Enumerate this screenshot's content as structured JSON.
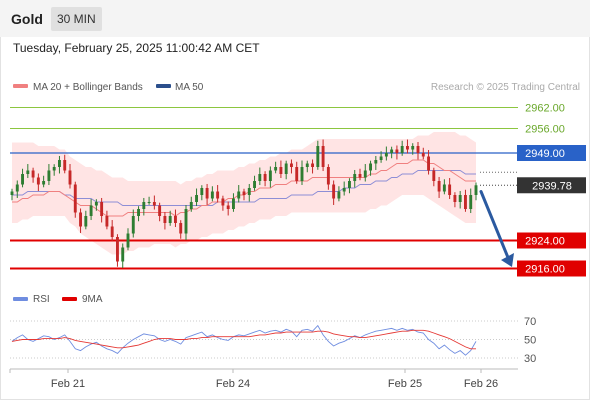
{
  "header": {
    "title": "Gold",
    "interval": "30 MIN"
  },
  "timestamp": "Tuesday, February 25, 2025 11:00:42 AM CET",
  "legend": {
    "ma20_label": "MA 20 + Bollinger Bands",
    "ma50_label": "MA 50",
    "credit": "Research © 2025 Trading Central",
    "rsi_label": "RSI",
    "rsi_ma_label": "9MA"
  },
  "colors": {
    "bullish": "#2e7d32",
    "bearish": "#c62828",
    "band": "#ffd6d6",
    "ma20": "#f08080",
    "ma50": "#8e8ed6",
    "resistance": "#8cc63f",
    "pivot": "#2962c8",
    "support": "#e00000",
    "last": "#333333",
    "rsi": "#6f8de0",
    "rsi_ma": "#e53935",
    "arrow": "#2b5aa0"
  },
  "chart_data": {
    "type": "candlestick",
    "ylim": [
      2911,
      2965
    ],
    "x_labels": [
      "Feb 21",
      "Feb 24",
      "Feb 25",
      "Feb 26"
    ],
    "levels": [
      {
        "label": "2962.00",
        "value": 2962.0,
        "kind": "resistance"
      },
      {
        "label": "2956.00",
        "value": 2956.0,
        "kind": "resistance"
      },
      {
        "label": "2949.00",
        "value": 2949.0,
        "kind": "pivot"
      },
      {
        "label": "2939.78",
        "value": 2939.78,
        "kind": "last"
      },
      {
        "label": "2924.00",
        "value": 2924.0,
        "kind": "support"
      },
      {
        "label": "2916.00",
        "value": 2916.0,
        "kind": "support"
      }
    ],
    "close": [
      2938,
      2940,
      2943,
      2944,
      2942,
      2940,
      2941,
      2944,
      2945,
      2947,
      2944,
      2940,
      2932,
      2928,
      2931,
      2934,
      2935,
      2931,
      2928,
      2925,
      2918,
      2922,
      2926,
      2931,
      2933,
      2935,
      2935,
      2934,
      2931,
      2929,
      2931,
      2929,
      2926,
      2933,
      2935,
      2937,
      2939,
      2936,
      2938,
      2936,
      2934,
      2933,
      2936,
      2938,
      2937,
      2939,
      2941,
      2943,
      2941,
      2944,
      2945,
      2943,
      2946,
      2945,
      2941,
      2945,
      2946,
      2945,
      2951,
      2945,
      2940,
      2936,
      2938,
      2939,
      2941,
      2943,
      2942,
      2944,
      2946,
      2947,
      2948,
      2949,
      2950,
      2949,
      2951,
      2950,
      2951,
      2949,
      2948,
      2944,
      2941,
      2938,
      2940,
      2937,
      2935,
      2937,
      2933,
      2937,
      2939.78
    ],
    "ma20": [
      2935,
      2935,
      2936,
      2936,
      2937,
      2937,
      2937,
      2938,
      2938,
      2938,
      2937,
      2936,
      2935,
      2934,
      2934,
      2934,
      2933,
      2932,
      2931,
      2931,
      2931,
      2931,
      2932,
      2932,
      2932,
      2932,
      2932,
      2932,
      2932,
      2932,
      2932,
      2931,
      2932,
      2932,
      2933,
      2933,
      2934,
      2934,
      2935,
      2935,
      2935,
      2936,
      2936,
      2937,
      2937,
      2938,
      2938,
      2939,
      2939,
      2939,
      2940,
      2940,
      2940,
      2941,
      2941,
      2941,
      2941,
      2942,
      2942,
      2942,
      2942,
      2942,
      2942,
      2942,
      2942,
      2942,
      2942,
      2942,
      2943,
      2943,
      2944,
      2944,
      2945,
      2946,
      2946,
      2946,
      2947,
      2947,
      2947,
      2946,
      2946,
      2945,
      2944,
      2944,
      2943,
      2942,
      2941,
      2941,
      2941
    ],
    "ma50": [
      2937,
      2937,
      2937,
      2938,
      2938,
      2938,
      2938,
      2938,
      2938,
      2938,
      2937,
      2937,
      2936,
      2936,
      2936,
      2936,
      2935,
      2935,
      2935,
      2935,
      2935,
      2934,
      2934,
      2934,
      2934,
      2934,
      2934,
      2934,
      2934,
      2934,
      2934,
      2934,
      2934,
      2934,
      2934,
      2934,
      2934,
      2934,
      2934,
      2935,
      2935,
      2935,
      2935,
      2935,
      2935,
      2935,
      2935,
      2936,
      2936,
      2936,
      2936,
      2936,
      2936,
      2937,
      2937,
      2937,
      2937,
      2937,
      2938,
      2938,
      2938,
      2938,
      2938,
      2939,
      2939,
      2939,
      2940,
      2940,
      2940,
      2941,
      2941,
      2941,
      2942,
      2942,
      2943,
      2943,
      2943,
      2944,
      2944,
      2944,
      2944,
      2944,
      2944,
      2944,
      2944,
      2944,
      2943,
      2943,
      2943
    ],
    "bb_upper": [
      2952,
      2952,
      2952,
      2952,
      2952,
      2951,
      2951,
      2951,
      2951,
      2950,
      2950,
      2948,
      2947,
      2946,
      2945,
      2945,
      2944,
      2944,
      2943,
      2942,
      2942,
      2942,
      2941,
      2941,
      2941,
      2941,
      2941,
      2941,
      2941,
      2941,
      2941,
      2941,
      2940,
      2941,
      2941,
      2942,
      2942,
      2943,
      2943,
      2944,
      2944,
      2944,
      2944,
      2945,
      2945,
      2946,
      2946,
      2947,
      2947,
      2948,
      2948,
      2949,
      2949,
      2950,
      2950,
      2950,
      2951,
      2952,
      2953,
      2953,
      2953,
      2953,
      2953,
      2953,
      2953,
      2953,
      2953,
      2953,
      2953,
      2953,
      2953,
      2953,
      2953,
      2953,
      2953,
      2953,
      2953,
      2954,
      2954,
      2954,
      2955,
      2955,
      2955,
      2955,
      2955,
      2954,
      2954,
      2953,
      2952
    ],
    "bb_lower": [
      2929,
      2929,
      2930,
      2930,
      2931,
      2931,
      2931,
      2931,
      2931,
      2931,
      2931,
      2929,
      2928,
      2926,
      2925,
      2924,
      2923,
      2922,
      2921,
      2920,
      2920,
      2920,
      2921,
      2921,
      2922,
      2922,
      2922,
      2923,
      2923,
      2923,
      2923,
      2922,
      2923,
      2923,
      2924,
      2924,
      2925,
      2925,
      2926,
      2926,
      2926,
      2927,
      2927,
      2928,
      2928,
      2929,
      2929,
      2930,
      2930,
      2930,
      2931,
      2931,
      2931,
      2932,
      2932,
      2932,
      2932,
      2932,
      2932,
      2932,
      2932,
      2932,
      2932,
      2932,
      2932,
      2932,
      2932,
      2932,
      2933,
      2933,
      2934,
      2934,
      2935,
      2936,
      2937,
      2937,
      2937,
      2937,
      2937,
      2936,
      2935,
      2934,
      2933,
      2932,
      2931,
      2930,
      2929,
      2929,
      2929
    ],
    "rsi": [
      48,
      52,
      55,
      50,
      48,
      51,
      54,
      53,
      50,
      52,
      55,
      48,
      40,
      38,
      42,
      45,
      47,
      43,
      40,
      38,
      35,
      41,
      46,
      50,
      53,
      56,
      55,
      54,
      50,
      48,
      50,
      48,
      45,
      52,
      54,
      56,
      58,
      53,
      55,
      52,
      50,
      49,
      53,
      55,
      54,
      56,
      58,
      60,
      57,
      59,
      60,
      58,
      61,
      59,
      53,
      60,
      61,
      59,
      65,
      55,
      48,
      43,
      46,
      48,
      51,
      54,
      52,
      55,
      57,
      59,
      60,
      61,
      62,
      60,
      62,
      60,
      61,
      58,
      57,
      50,
      46,
      40,
      44,
      39,
      35,
      38,
      33,
      38,
      48
    ],
    "rsi_ma": [
      48,
      49,
      50,
      50,
      50,
      50,
      51,
      51,
      51,
      51,
      52,
      51,
      49,
      48,
      47,
      46,
      45,
      44,
      43,
      42,
      41,
      41,
      42,
      43,
      44,
      46,
      48,
      50,
      51,
      51,
      51,
      50,
      50,
      50,
      51,
      51,
      52,
      52,
      53,
      53,
      53,
      53,
      53,
      53,
      53,
      53,
      54,
      55,
      55,
      56,
      57,
      57,
      58,
      58,
      58,
      58,
      58,
      58,
      59,
      59,
      58,
      56,
      55,
      54,
      53,
      53,
      52,
      52,
      53,
      54,
      55,
      56,
      57,
      58,
      59,
      59,
      60,
      60,
      60,
      59,
      57,
      55,
      53,
      51,
      48,
      45,
      42,
      40,
      40
    ],
    "rsi_ticks": [
      70,
      50,
      30
    ],
    "arrow": {
      "from_value": 2938,
      "to_value": 2915
    }
  }
}
